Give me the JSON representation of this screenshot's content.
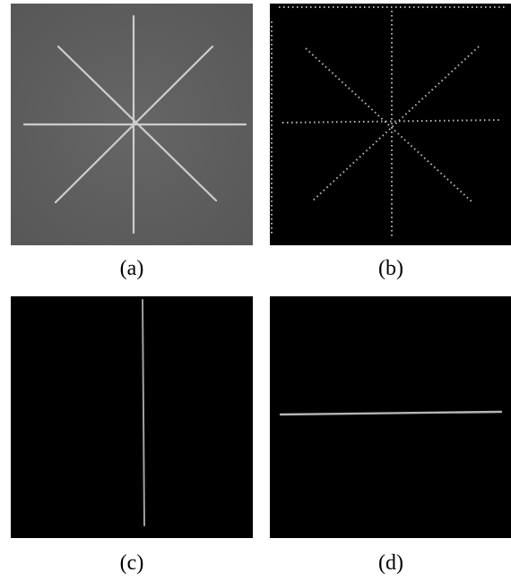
{
  "captions": {
    "a": "(a)",
    "b": "(b)",
    "c": "(c)",
    "d": "(d)"
  },
  "colors": {
    "panel_a_background": "#606060",
    "panel_a_lines": "#cfcfcf",
    "dark_background": "#000000",
    "dark_lines": "#d9d9d9",
    "caption_text": "#000000"
  }
}
